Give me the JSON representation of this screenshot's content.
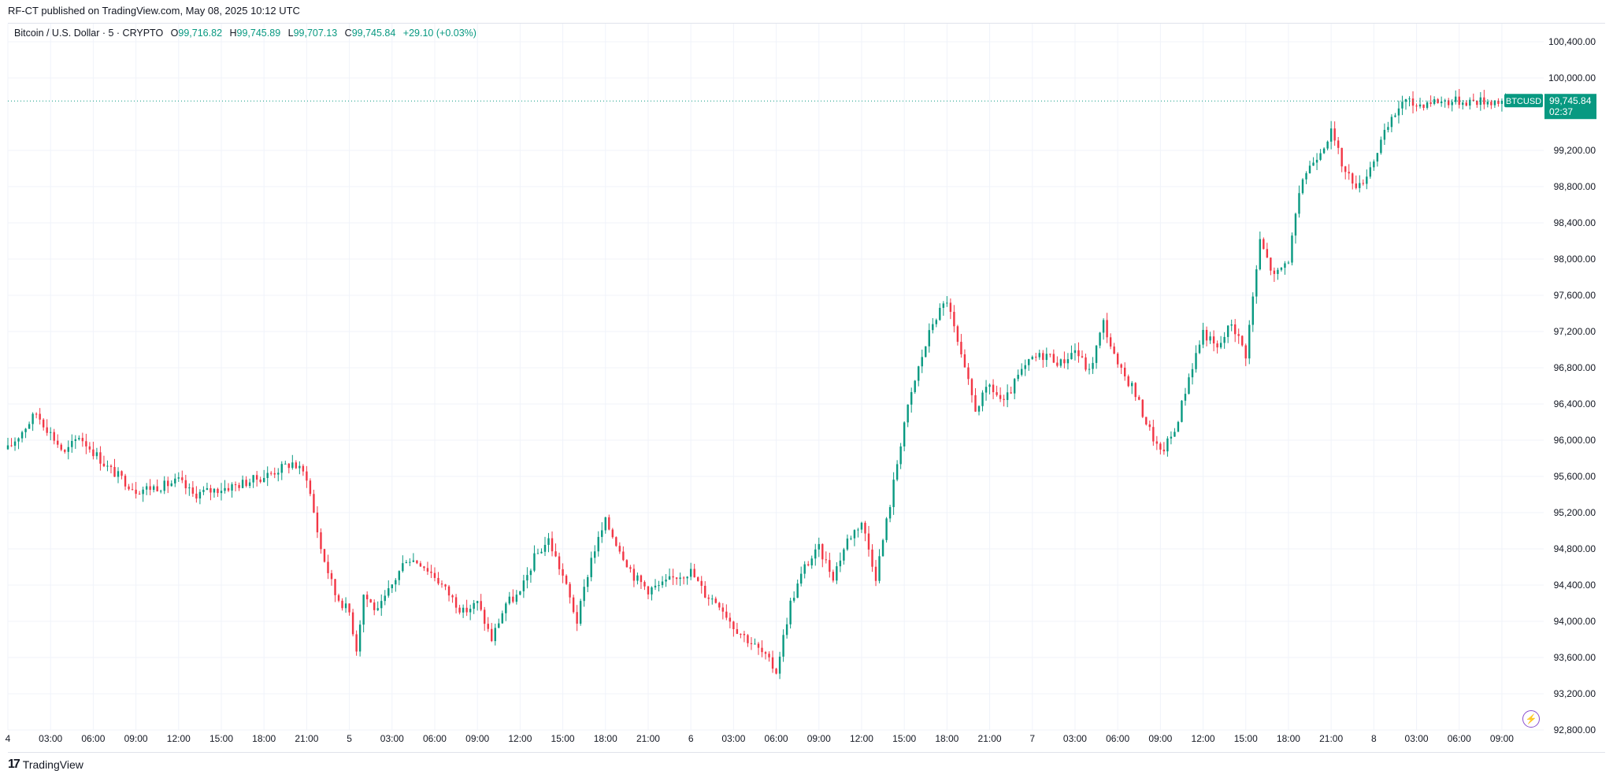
{
  "header": {
    "published": "RF-CT published on TradingView.com, May 08, 2025 10:12 UTC"
  },
  "legend": {
    "symbol": "Bitcoin / U.S. Dollar · 5 · CRYPTO",
    "open_label": "O",
    "open": "99,716.82",
    "high_label": "H",
    "high": "99,745.89",
    "low_label": "L",
    "low": "99,707.13",
    "close_label": "C",
    "close": "99,745.84",
    "change": "+29.10 (+0.03%)"
  },
  "price_tag": {
    "ticker": "BTCUSD",
    "price": "99,745.84",
    "countdown": "02:37"
  },
  "footer": {
    "brand": "TradingView",
    "mark": "17"
  },
  "icons": {
    "flash": "lightning-bolt-icon",
    "logo": "tradingview-logo-icon"
  },
  "colors": {
    "up": "#089981",
    "down": "#f23645",
    "grid": "#f0f3fa",
    "tag": "#089981"
  },
  "chart_data": {
    "type": "candlestick",
    "interval": "5",
    "ylim": [
      92800,
      100600
    ],
    "y_ticks": [
      "100,400.00",
      "100,000.00",
      "99,200.00",
      "98,800.00",
      "98,400.00",
      "98,000.00",
      "97,600.00",
      "97,200.00",
      "96,800.00",
      "96,400.00",
      "96,000.00",
      "95,600.00",
      "95,200.00",
      "94,800.00",
      "94,400.00",
      "94,000.00",
      "93,600.00",
      "93,200.00",
      "92,800.00"
    ],
    "x_ticks": [
      "4",
      "03:00",
      "06:00",
      "09:00",
      "12:00",
      "15:00",
      "18:00",
      "21:00",
      "5",
      "03:00",
      "06:00",
      "09:00",
      "12:00",
      "15:00",
      "18:00",
      "21:00",
      "6",
      "03:00",
      "06:00",
      "09:00",
      "12:00",
      "15:00",
      "18:00",
      "21:00",
      "7",
      "03:00",
      "06:00",
      "09:00",
      "12:00",
      "15:00",
      "18:00",
      "21:00",
      "8",
      "03:00",
      "06:00",
      "09:00"
    ],
    "x_hours_span": [
      0,
      106
    ],
    "last_price": 99745.84,
    "price_path_hours": [
      0,
      2,
      4,
      5,
      7,
      9,
      11,
      12,
      13,
      16,
      18,
      20,
      21,
      22,
      23,
      24,
      24.5,
      25,
      25.5,
      26,
      27,
      28,
      29,
      30,
      31,
      32,
      33,
      34,
      35,
      36,
      37,
      38,
      39,
      40,
      41,
      42,
      43,
      44,
      45,
      46,
      47,
      48,
      49,
      50,
      51,
      52,
      53,
      54,
      55,
      56,
      57,
      58,
      59,
      60,
      61,
      62,
      63,
      64,
      65,
      66,
      67,
      68,
      69,
      70,
      71,
      72,
      73,
      74,
      75,
      76,
      77,
      78,
      79,
      80,
      81,
      82,
      83,
      84,
      85,
      86,
      87,
      88,
      89,
      90,
      91,
      92,
      93,
      94,
      95,
      96,
      96.5,
      97,
      98,
      99,
      100,
      101,
      102,
      103,
      104,
      105,
      106
    ],
    "price_path": [
      95900,
      96300,
      95850,
      96050,
      95700,
      95450,
      95500,
      95550,
      95400,
      95500,
      95600,
      95750,
      95600,
      94800,
      94300,
      94100,
      93700,
      94300,
      94200,
      94100,
      94400,
      94700,
      94650,
      94500,
      94300,
      94100,
      94200,
      93800,
      94200,
      94300,
      94700,
      94900,
      94500,
      94000,
      94700,
      95100,
      94800,
      94500,
      94350,
      94400,
      94500,
      94550,
      94300,
      94200,
      93950,
      93800,
      93650,
      93450,
      94200,
      94600,
      94800,
      94500,
      94900,
      95100,
      94500,
      95300,
      96200,
      96800,
      97300,
      97550,
      96900,
      96350,
      96600,
      96400,
      96700,
      96900,
      96950,
      96850,
      97000,
      96750,
      97300,
      96800,
      96600,
      96200,
      95850,
      96100,
      96700,
      97200,
      97000,
      97300,
      96950,
      98200,
      97800,
      98000,
      98900,
      99150,
      99400,
      98950,
      98800,
      99100,
      99300,
      99450,
      99750,
      99700,
      99746,
      99746,
      99746,
      99746,
      99746,
      99746,
      99746
    ]
  }
}
